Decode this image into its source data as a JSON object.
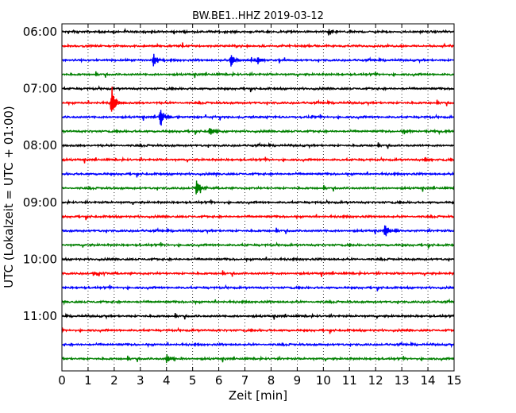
{
  "chart_data": {
    "type": "line",
    "title": "BW.BE1..HHZ 2019-03-12",
    "xlabel": "Zeit  [min]",
    "ylabel": "UTC (Lokalzeit = UTC + 01:00)",
    "xlim": [
      0,
      15
    ],
    "x_ticks": [
      "0",
      "1",
      "2",
      "3",
      "4",
      "5",
      "6",
      "7",
      "8",
      "9",
      "10",
      "11",
      "12",
      "13",
      "14",
      "15"
    ],
    "y_tick_labels": [
      "06:00",
      "07:00",
      "08:00",
      "09:00",
      "10:00",
      "11:00"
    ],
    "trace_interval_min": 15,
    "first_trace": "06:00",
    "trace_count": 24,
    "color_cycle": [
      "#000000",
      "#ff0000",
      "#0000ff",
      "#008000"
    ],
    "grid": {
      "vertical_dotted": true,
      "horizontal": false
    },
    "events": [
      {
        "trace": "06:00",
        "minute": 10.2,
        "amplitude": 0.35
      },
      {
        "trace": "06:30",
        "minute": 3.5,
        "amplitude": 0.75
      },
      {
        "trace": "06:30",
        "minute": 6.45,
        "amplitude": 0.75
      },
      {
        "trace": "06:30",
        "minute": 7.5,
        "amplitude": 0.45
      },
      {
        "trace": "07:15",
        "minute": 1.9,
        "amplitude": 1.9
      },
      {
        "trace": "07:30",
        "minute": 3.75,
        "amplitude": 1.2
      },
      {
        "trace": "07:45",
        "minute": 5.65,
        "amplitude": 0.6
      },
      {
        "trace": "07:45",
        "minute": 13.1,
        "amplitude": 0.3
      },
      {
        "trace": "08:15",
        "minute": 13.9,
        "amplitude": 0.3
      },
      {
        "trace": "08:45",
        "minute": 5.15,
        "amplitude": 0.9
      },
      {
        "trace": "09:30",
        "minute": 12.35,
        "amplitude": 0.75
      },
      {
        "trace": "10:15",
        "minute": 1.2,
        "amplitude": 0.3
      },
      {
        "trace": "11:45",
        "minute": 4.0,
        "amplitude": 0.55
      }
    ]
  }
}
